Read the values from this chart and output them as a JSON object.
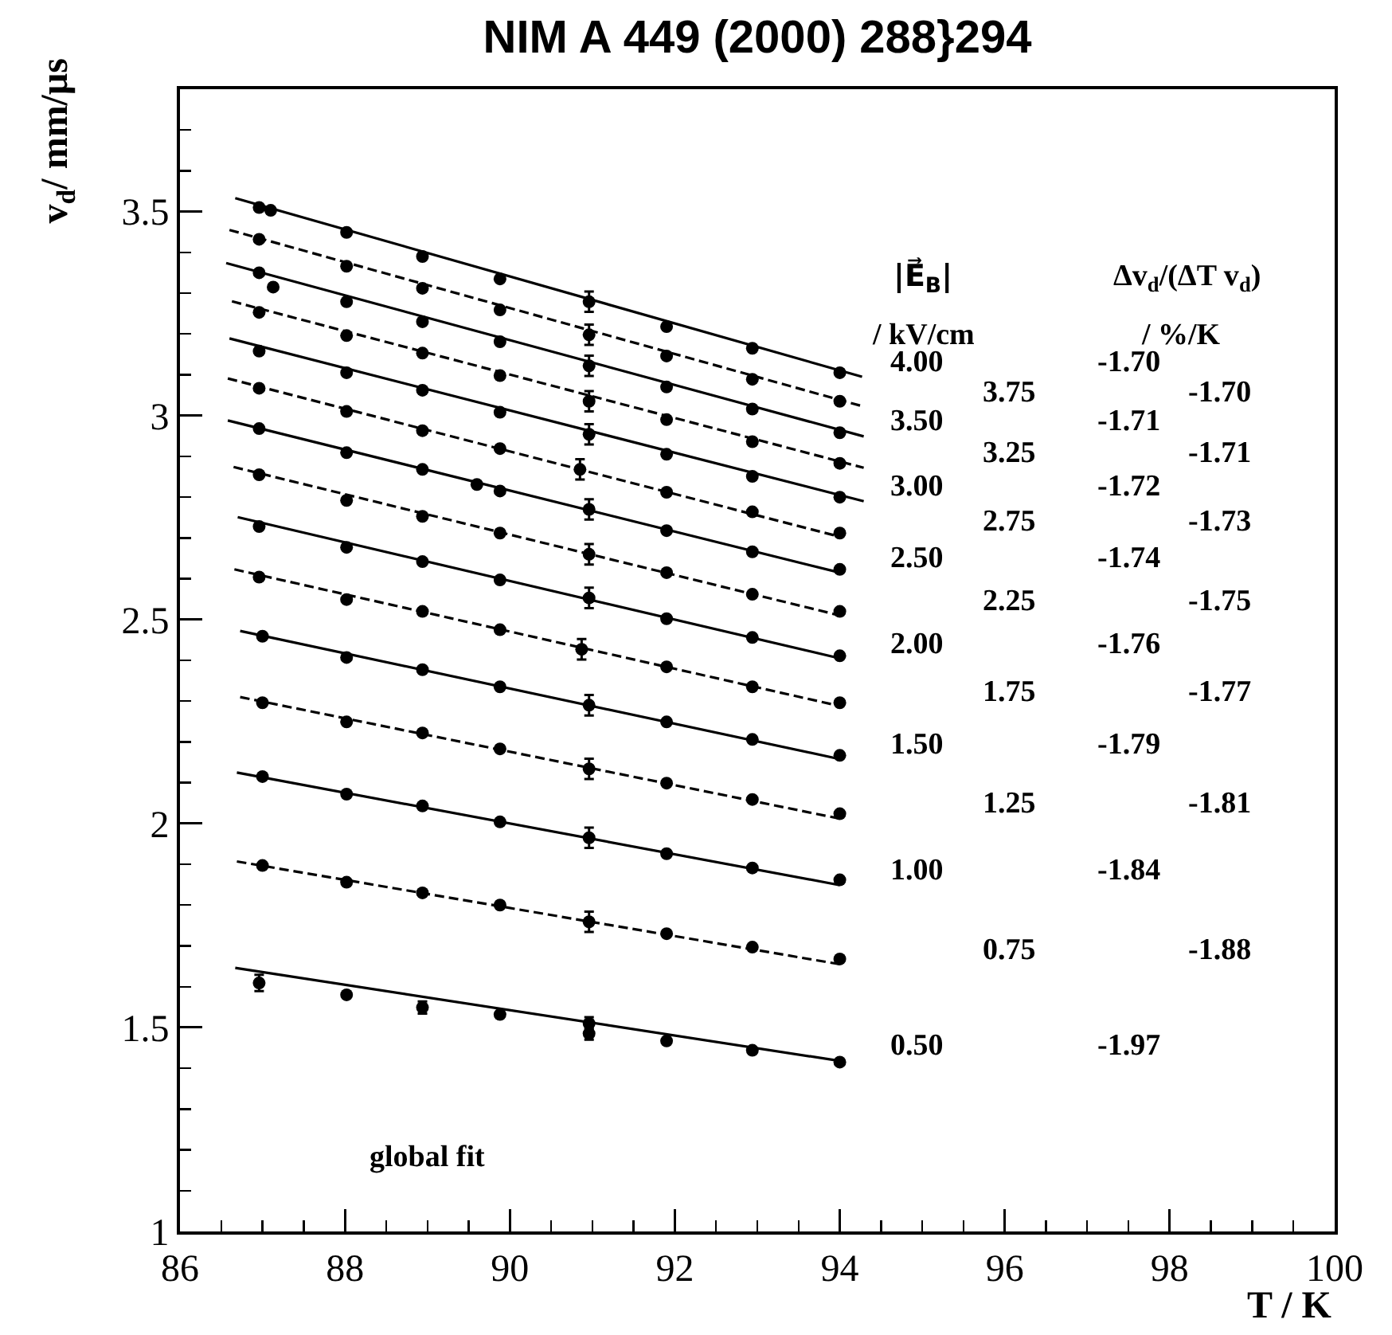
{
  "chart_data": {
    "type": "scatter",
    "title": "NIM A 449 (2000) 288}294",
    "xlabel": "T / K",
    "ylabel": "v$_{d}$/ mm/μs",
    "xlim": [
      86,
      100
    ],
    "ylim": [
      1,
      3.8
    ],
    "xticks": [
      86,
      {
        "value": 86.5,
        "label": null
      },
      {
        "value": 87,
        "label": null
      },
      {
        "value": 87.5,
        "label": null
      },
      88,
      {
        "value": 88.5,
        "label": null
      },
      {
        "value": 89,
        "label": null
      },
      {
        "value": 89.5,
        "label": null
      },
      90,
      {
        "value": 90.5,
        "label": null
      },
      {
        "value": 91,
        "label": null
      },
      {
        "value": 91.5,
        "label": null
      },
      92,
      {
        "value": 92.5,
        "label": null
      },
      {
        "value": 93,
        "label": null
      },
      {
        "value": 93.5,
        "label": null
      },
      94,
      {
        "value": 94.5,
        "label": null
      },
      {
        "value": 95,
        "label": null
      },
      {
        "value": 95.5,
        "label": null
      },
      96,
      {
        "value": 96.5,
        "label": null
      },
      {
        "value": 97,
        "label": null
      },
      {
        "value": 97.5,
        "label": null
      },
      98,
      {
        "value": 98.5,
        "label": null
      },
      {
        "value": 99,
        "label": null
      },
      {
        "value": 99.5,
        "label": null
      },
      100
    ],
    "yticks": [
      1,
      {
        "value": 1.1,
        "label": null
      },
      {
        "value": 1.2,
        "label": null
      },
      {
        "value": 1.3,
        "label": null
      },
      {
        "value": 1.4,
        "label": null
      },
      1.5,
      {
        "value": 1.6,
        "label": null
      },
      {
        "value": 1.7,
        "label": null
      },
      {
        "value": 1.8,
        "label": null
      },
      {
        "value": 1.9,
        "label": null
      },
      2,
      {
        "value": 2.1,
        "label": null
      },
      {
        "value": 2.2,
        "label": null
      },
      {
        "value": 2.3,
        "label": null
      },
      {
        "value": 2.4,
        "label": null
      },
      2.5,
      {
        "value": 2.6,
        "label": null
      },
      {
        "value": 2.7,
        "label": null
      },
      {
        "value": 2.8,
        "label": null
      },
      {
        "value": 2.9,
        "label": null
      },
      3,
      {
        "value": 3.1,
        "label": null
      },
      {
        "value": 3.2,
        "label": null
      },
      {
        "value": 3.3,
        "label": null
      },
      {
        "value": 3.4,
        "label": null
      },
      3.5,
      {
        "value": 3.6,
        "label": null
      },
      {
        "value": 3.7,
        "label": null
      }
    ],
    "grid": false,
    "legend": false,
    "series": [
      {
        "type": "line",
        "name": "4.00",
        "color": "#000000",
        "line_style": "solid",
        "marker": "none",
        "x": [
          86.67,
          94.27
        ],
        "values": [
          3.533,
          3.095
        ]
      },
      {
        "color": "#000000",
        "marker": "circle",
        "x": [
          86.96,
          87.1,
          88.02,
          88.94,
          89.88,
          90.96,
          91.9,
          92.94,
          94.0
        ],
        "values": [
          3.51,
          3.503,
          3.449,
          3.39,
          3.335,
          3.279,
          3.218,
          3.165,
          3.105
        ],
        "errors": [
          null,
          null,
          null,
          null,
          null,
          0.025,
          null,
          null,
          null
        ]
      },
      {
        "type": "line",
        "name": "3.75",
        "color": "#000000",
        "line_style": "dashed",
        "marker": "none",
        "x": [
          86.6,
          94.29
        ],
        "values": [
          3.455,
          3.022
        ]
      },
      {
        "color": "#000000",
        "marker": "circle",
        "x": [
          86.96,
          88.02,
          88.94,
          89.88,
          90.96,
          91.9,
          92.94,
          94.0
        ],
        "values": [
          3.432,
          3.366,
          3.312,
          3.259,
          3.198,
          3.146,
          3.089,
          3.035
        ],
        "errors": [
          null,
          null,
          null,
          null,
          0.025,
          null,
          null,
          null
        ]
      },
      {
        "type": "line",
        "name": "3.50",
        "color": "#000000",
        "line_style": "solid",
        "marker": "none",
        "x": [
          86.56,
          94.29
        ],
        "values": [
          3.374,
          2.949
        ]
      },
      {
        "color": "#000000",
        "marker": "circle",
        "x": [
          86.96,
          87.13,
          88.02,
          88.94,
          89.88,
          90.96,
          91.9,
          92.94,
          94.0
        ],
        "values": [
          3.35,
          3.315,
          3.279,
          3.23,
          3.181,
          3.122,
          3.07,
          3.016,
          2.958
        ],
        "errors": [
          null,
          null,
          null,
          null,
          null,
          0.025,
          null,
          null,
          null
        ]
      },
      {
        "type": "line",
        "name": "3.25",
        "color": "#000000",
        "line_style": "dashed",
        "marker": "none",
        "x": [
          86.63,
          94.29
        ],
        "values": [
          3.28,
          2.872
        ]
      },
      {
        "color": "#000000",
        "marker": "circle",
        "x": [
          86.96,
          88.02,
          88.94,
          89.88,
          90.96,
          91.9,
          92.94,
          94.0
        ],
        "values": [
          3.253,
          3.196,
          3.153,
          3.098,
          3.035,
          2.99,
          2.936,
          2.883
        ],
        "errors": [
          null,
          null,
          null,
          null,
          0.025,
          null,
          null,
          null
        ]
      },
      {
        "type": "line",
        "name": "3.00",
        "color": "#000000",
        "line_style": "solid",
        "marker": "none",
        "x": [
          86.6,
          94.29
        ],
        "values": [
          3.189,
          2.79
        ]
      },
      {
        "color": "#000000",
        "marker": "circle",
        "x": [
          86.96,
          88.02,
          88.94,
          89.88,
          90.96,
          91.9,
          92.94,
          94.0
        ],
        "values": [
          3.158,
          3.105,
          3.062,
          3.008,
          2.954,
          2.905,
          2.851,
          2.8
        ],
        "errors": [
          null,
          null,
          null,
          null,
          0.025,
          null,
          null,
          null
        ]
      },
      {
        "type": "line",
        "name": "2.75",
        "color": "#000000",
        "line_style": "dashed",
        "marker": "none",
        "x": [
          86.58,
          94.0
        ],
        "values": [
          3.091,
          2.703
        ]
      },
      {
        "color": "#000000",
        "marker": "circle",
        "x": [
          86.96,
          88.02,
          88.94,
          89.88,
          90.85,
          91.9,
          92.94,
          94.0
        ],
        "values": [
          3.067,
          3.01,
          2.963,
          2.919,
          2.868,
          2.812,
          2.764,
          2.712
        ],
        "errors": [
          null,
          null,
          null,
          null,
          0.025,
          null,
          null,
          null
        ]
      },
      {
        "type": "line",
        "name": "2.50",
        "color": "#000000",
        "line_style": "solid",
        "marker": "none",
        "x": [
          86.58,
          94.0
        ],
        "values": [
          2.988,
          2.615
        ]
      },
      {
        "color": "#000000",
        "marker": "circle",
        "x": [
          86.96,
          88.02,
          88.94,
          89.6,
          89.88,
          90.96,
          91.9,
          92.94,
          94.0
        ],
        "values": [
          2.968,
          2.909,
          2.868,
          2.831,
          2.815,
          2.77,
          2.718,
          2.666,
          2.623
        ],
        "errors": [
          null,
          null,
          null,
          null,
          null,
          0.025,
          null,
          null,
          null
        ]
      },
      {
        "type": "line",
        "name": "2.25",
        "color": "#000000",
        "line_style": "dashed",
        "marker": "none",
        "x": [
          86.65,
          94.0
        ],
        "values": [
          2.874,
          2.51
        ]
      },
      {
        "color": "#000000",
        "marker": "circle",
        "x": [
          86.96,
          88.02,
          88.94,
          89.88,
          90.96,
          91.9,
          92.94,
          94.0
        ],
        "values": [
          2.855,
          2.792,
          2.753,
          2.712,
          2.66,
          2.615,
          2.562,
          2.52
        ],
        "errors": [
          null,
          null,
          null,
          null,
          0.025,
          null,
          null,
          null
        ]
      },
      {
        "type": "line",
        "name": "2.00",
        "color": "#000000",
        "line_style": "solid",
        "marker": "none",
        "x": [
          86.7,
          94.0
        ],
        "values": [
          2.751,
          2.405
        ]
      },
      {
        "color": "#000000",
        "marker": "circle",
        "x": [
          86.96,
          88.02,
          88.94,
          89.88,
          90.96,
          91.9,
          92.94,
          94.0
        ],
        "values": [
          2.728,
          2.677,
          2.642,
          2.597,
          2.553,
          2.502,
          2.456,
          2.411
        ],
        "errors": [
          null,
          null,
          null,
          null,
          0.025,
          null,
          null,
          null
        ]
      },
      {
        "type": "line",
        "name": "1.75",
        "color": "#000000",
        "line_style": "dashed",
        "marker": "none",
        "x": [
          86.66,
          94.0
        ],
        "values": [
          2.623,
          2.288
        ]
      },
      {
        "color": "#000000",
        "marker": "circle",
        "x": [
          86.96,
          88.02,
          88.94,
          89.88,
          90.87,
          91.9,
          92.94,
          94.0
        ],
        "values": [
          2.604,
          2.549,
          2.52,
          2.475,
          2.427,
          2.384,
          2.335,
          2.296
        ],
        "errors": [
          null,
          null,
          null,
          null,
          0.025,
          null,
          null,
          null
        ]
      },
      {
        "type": "line",
        "name": "1.50",
        "color": "#000000",
        "line_style": "solid",
        "marker": "none",
        "x": [
          86.73,
          94.0
        ],
        "values": [
          2.472,
          2.158
        ]
      },
      {
        "color": "#000000",
        "marker": "circle",
        "x": [
          87.0,
          88.02,
          88.94,
          89.88,
          90.96,
          91.9,
          92.94,
          94.0
        ],
        "values": [
          2.459,
          2.407,
          2.377,
          2.335,
          2.29,
          2.249,
          2.206,
          2.167
        ],
        "errors": [
          null,
          null,
          null,
          null,
          0.025,
          null,
          null,
          null
        ]
      },
      {
        "type": "line",
        "name": "1.25",
        "color": "#000000",
        "line_style": "dashed",
        "marker": "none",
        "x": [
          86.73,
          94.0
        ],
        "values": [
          2.31,
          2.012
        ]
      },
      {
        "color": "#000000",
        "marker": "circle",
        "x": [
          87.0,
          88.02,
          88.94,
          89.88,
          90.96,
          91.9,
          92.94,
          94.0
        ],
        "values": [
          2.296,
          2.249,
          2.222,
          2.183,
          2.134,
          2.099,
          2.059,
          2.024
        ],
        "errors": [
          null,
          null,
          null,
          null,
          0.025,
          null,
          null,
          null
        ]
      },
      {
        "type": "line",
        "name": "1.00",
        "color": "#000000",
        "line_style": "solid",
        "marker": "none",
        "x": [
          86.69,
          94.0
        ],
        "values": [
          2.125,
          1.849
        ]
      },
      {
        "color": "#000000",
        "marker": "circle",
        "x": [
          87.0,
          88.02,
          88.94,
          89.88,
          90.96,
          91.9,
          92.94,
          94.0
        ],
        "values": [
          2.115,
          2.072,
          2.043,
          2.004,
          1.965,
          1.926,
          1.891,
          1.862
        ],
        "errors": [
          null,
          null,
          null,
          null,
          0.025,
          null,
          null,
          null
        ]
      },
      {
        "type": "line",
        "name": "0.75",
        "color": "#000000",
        "line_style": "dashed",
        "marker": "none",
        "x": [
          86.69,
          94.0
        ],
        "values": [
          1.907,
          1.655
        ]
      },
      {
        "color": "#000000",
        "marker": "circle",
        "x": [
          87.0,
          88.02,
          88.94,
          89.88,
          90.96,
          91.9,
          92.94,
          94.0
        ],
        "values": [
          1.897,
          1.856,
          1.83,
          1.8,
          1.759,
          1.73,
          1.697,
          1.668
        ],
        "errors": [
          null,
          null,
          null,
          null,
          0.025,
          null,
          null,
          null
        ]
      },
      {
        "type": "line",
        "name": "0.50",
        "color": "#000000",
        "line_style": "solid",
        "marker": "none",
        "x": [
          86.67,
          94.0
        ],
        "values": [
          1.646,
          1.418
        ]
      },
      {
        "color": "#000000",
        "marker": "circle",
        "x": [
          86.96,
          88.02,
          88.94,
          89.88,
          90.96,
          90.96,
          91.9,
          92.94,
          94.0
        ],
        "values": [
          1.609,
          1.58,
          1.549,
          1.532,
          1.51,
          1.485,
          1.467,
          1.444,
          1.415
        ],
        "errors": [
          0.02,
          null,
          0.015,
          null,
          0.015,
          0.015,
          null,
          null,
          null
        ]
      }
    ],
    "annotations": [
      "|E⃗$_{B}$|",
      "/ kV/cm",
      "Δv$_{d}$/(ΔT v$_{d}$)",
      "/ %/K",
      "-1.70",
      "-1.70",
      "-1.71",
      "-1.71",
      "-1.72",
      "-1.73",
      "-1.74",
      "-1.75",
      "-1.76",
      "-1.77",
      "-1.79",
      "-1.81",
      "-1.84",
      "-1.88",
      "-1.97",
      "global fit"
    ]
  }
}
